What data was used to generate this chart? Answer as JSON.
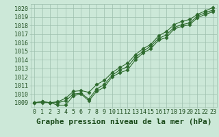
{
  "title": "Graphe pression niveau de la mer (hPa)",
  "x_labels": [
    "0",
    "1",
    "2",
    "3",
    "4",
    "5",
    "6",
    "7",
    "8",
    "9",
    "10",
    "11",
    "12",
    "13",
    "14",
    "15",
    "16",
    "17",
    "18",
    "19",
    "20",
    "21",
    "22",
    "23"
  ],
  "hours": [
    0,
    1,
    2,
    3,
    4,
    5,
    6,
    7,
    8,
    9,
    10,
    11,
    12,
    13,
    14,
    15,
    16,
    17,
    18,
    19,
    20,
    21,
    22,
    23
  ],
  "line_bottom": [
    1009.0,
    1009.0,
    1009.0,
    1008.7,
    1008.7,
    1009.8,
    1010.0,
    1009.2,
    1010.3,
    1010.8,
    1012.0,
    1012.5,
    1012.8,
    1014.0,
    1014.8,
    1015.3,
    1016.3,
    1016.6,
    1017.6,
    1017.9,
    1018.1,
    1018.9,
    1019.3,
    1019.6
  ],
  "line_mid": [
    1009.0,
    1009.1,
    1009.0,
    1009.0,
    1009.2,
    1010.0,
    1010.1,
    1009.4,
    1010.6,
    1011.1,
    1012.2,
    1012.8,
    1013.2,
    1014.3,
    1015.0,
    1015.6,
    1016.5,
    1016.9,
    1017.8,
    1018.1,
    1018.3,
    1019.1,
    1019.5,
    1019.8
  ],
  "line_top": [
    1009.0,
    1009.1,
    1009.0,
    1009.1,
    1009.5,
    1010.3,
    1010.4,
    1010.2,
    1011.1,
    1011.6,
    1012.5,
    1013.1,
    1013.6,
    1014.6,
    1015.3,
    1015.8,
    1016.8,
    1017.3,
    1018.1,
    1018.5,
    1018.7,
    1019.3,
    1019.7,
    1020.1
  ],
  "line_color": "#2d6a2d",
  "marker": "D",
  "bg_color": "#cce8d8",
  "grid_color": "#9dbfad",
  "ylim_min": 1008.5,
  "ylim_max": 1020.5,
  "yticks": [
    1009,
    1010,
    1011,
    1012,
    1013,
    1014,
    1015,
    1016,
    1017,
    1018,
    1019,
    1020
  ],
  "title_fontsize": 8,
  "tick_fontsize": 6,
  "title_color": "#1a4a1a",
  "label_color": "#1a4a1a"
}
